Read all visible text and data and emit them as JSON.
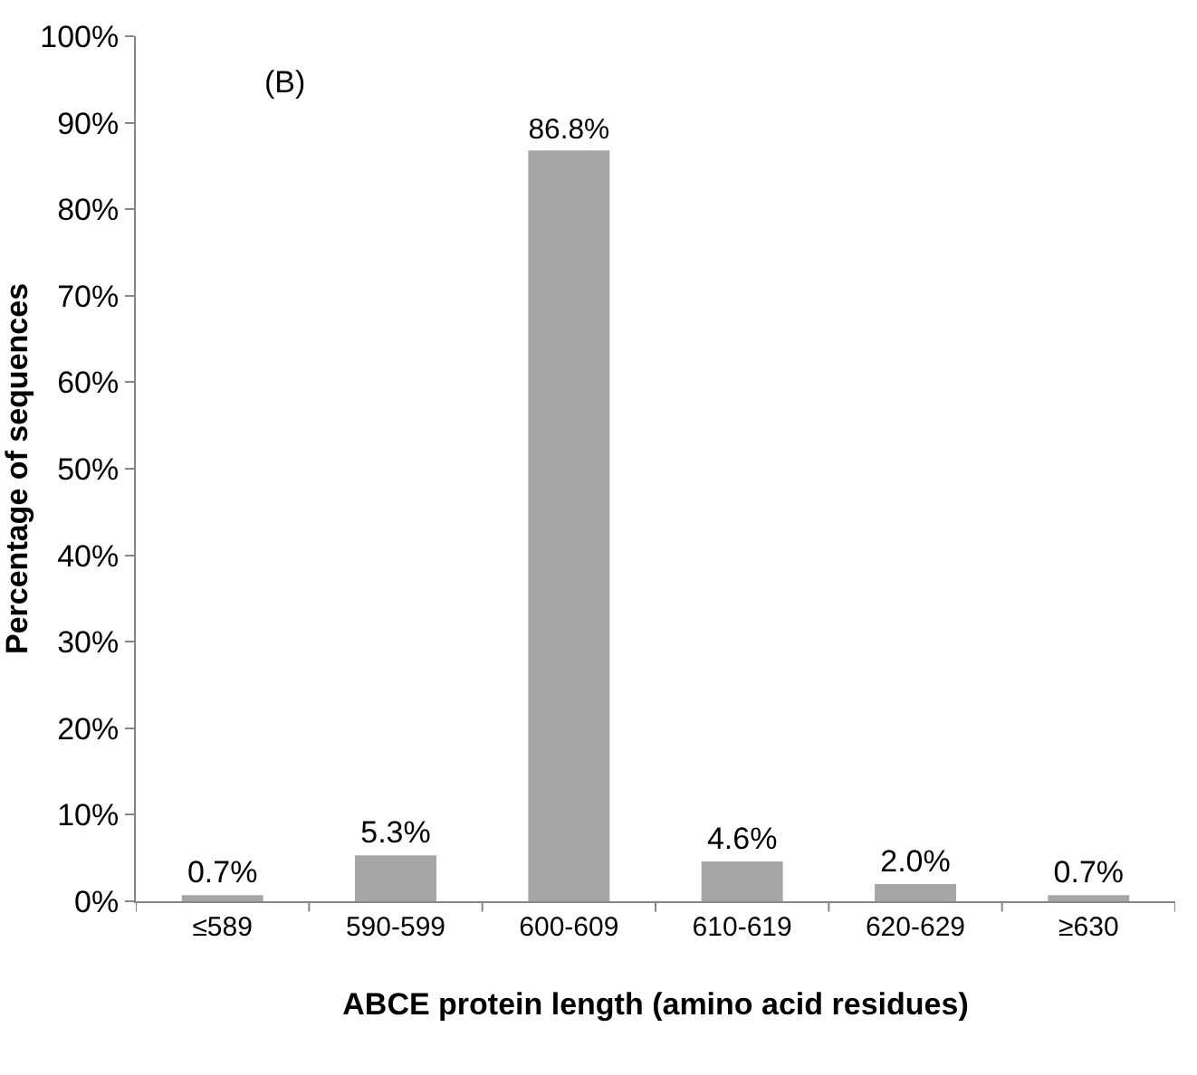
{
  "chart_data": {
    "type": "bar",
    "xlabel": "ABCE protein length (amino acid residues)",
    "ylabel": "Percentage of sequences",
    "annotations": [
      "(B)"
    ],
    "categories": [
      "≤589",
      "590-599",
      "600-609",
      "610-619",
      "620-629",
      "≥630"
    ],
    "values": [
      0.7,
      5.3,
      86.8,
      4.6,
      2.0,
      0.7
    ],
    "value_labels": [
      "0.7%",
      "5.3%",
      "86.8%",
      "4.6%",
      "2.0%",
      "0.7%"
    ],
    "color": "#a6a6a6",
    "ylim": [
      0,
      100
    ],
    "yticks": [
      {
        "value": 0,
        "label": "0%"
      },
      {
        "value": 10,
        "label": "10%"
      },
      {
        "value": 20,
        "label": "20%"
      },
      {
        "value": 30,
        "label": "30%"
      },
      {
        "value": 40,
        "label": "40%"
      },
      {
        "value": 50,
        "label": "50%"
      },
      {
        "value": 60,
        "label": "60%"
      },
      {
        "value": 70,
        "label": "70%"
      },
      {
        "value": 80,
        "label": "80%"
      },
      {
        "value": 90,
        "label": "90%"
      },
      {
        "value": 100,
        "label": "100%"
      }
    ],
    "grid": false,
    "legend": false
  }
}
